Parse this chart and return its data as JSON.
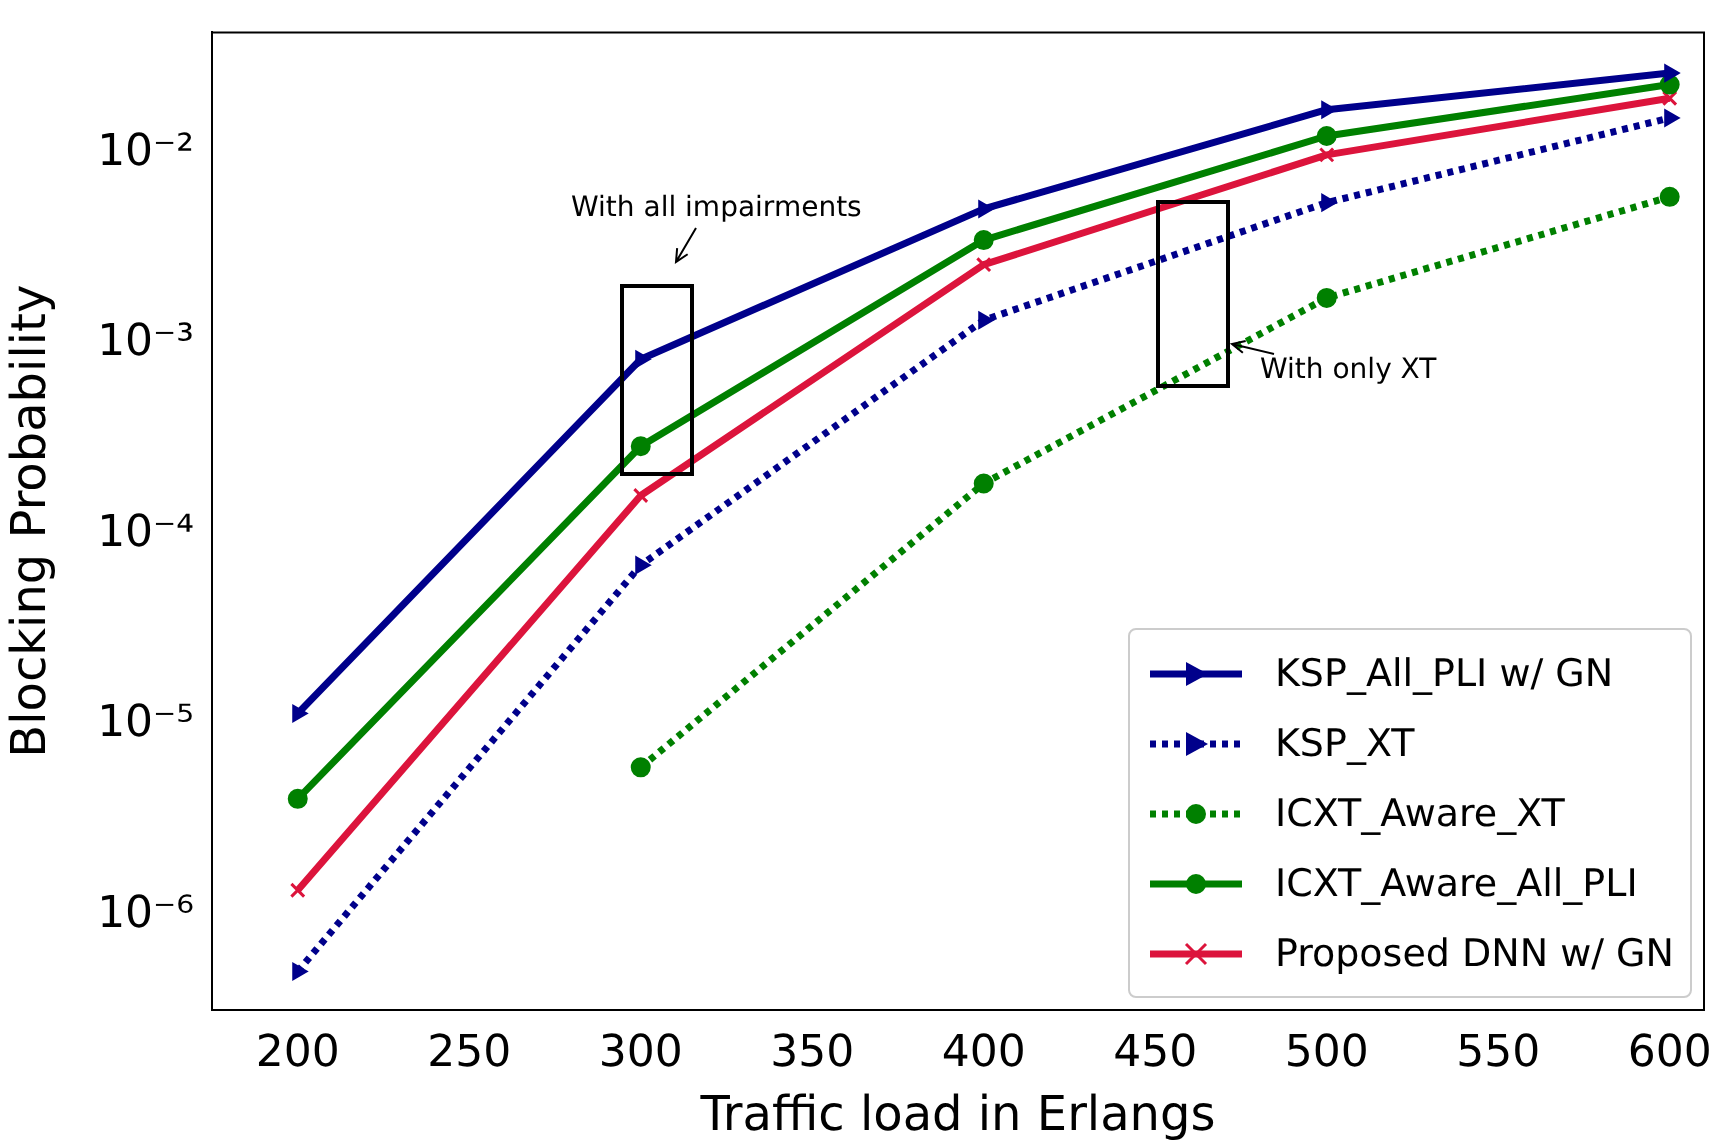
{
  "chart_data": {
    "type": "line",
    "xlabel": "Traffic load in Erlangs",
    "ylabel": "Blocking Probability",
    "log": "y",
    "grid": false,
    "legend": "bottom right",
    "x": [
      200,
      300,
      400,
      500,
      600
    ],
    "xlim": [
      175,
      610
    ],
    "xticks": [
      200,
      250,
      300,
      350,
      400,
      450,
      500,
      550,
      600
    ],
    "ylim": [
      3.2e-07,
      0.043
    ],
    "yticks": [
      {
        "value": 1e-06,
        "label": "10⁻⁶"
      },
      {
        "value": 1e-05,
        "label": "10⁻⁵"
      },
      {
        "value": 0.0001,
        "label": "10⁻⁴"
      },
      {
        "value": 0.001,
        "label": "10⁻³"
      },
      {
        "value": 0.01,
        "label": "10⁻²"
      }
    ],
    "series": [
      {
        "name": "KSP_All_PLI w/ GN",
        "color": "#00008b",
        "marker": "triangle",
        "line_style": "solid",
        "values": [
          1.15e-05,
          0.00083,
          0.0051,
          0.0169,
          0.0263
        ]
      },
      {
        "name": "KSP_XT",
        "color": "#00008b",
        "marker": "triangle",
        "line_style": "dotted",
        "values": [
          5.1e-07,
          6.9e-05,
          0.00133,
          0.0055,
          0.0153
        ]
      },
      {
        "name": "ICXT_Aware_XT",
        "color": "#008000",
        "marker": "circle",
        "line_style": "dotted",
        "values": [
          null,
          6e-06,
          0.000185,
          0.00174,
          0.0059
        ]
      },
      {
        "name": "ICXT_Aware_All_PLI",
        "color": "#008000",
        "marker": "circle",
        "line_style": "solid",
        "values": [
          4.1e-06,
          0.00029,
          0.0035,
          0.0123,
          0.0229
        ]
      },
      {
        "name": "Proposed DNN w/ GN",
        "color": "#dc143c",
        "marker": "cross",
        "line_style": "solid",
        "values": [
          1.36e-06,
          0.00016,
          0.0026,
          0.0098,
          0.0194
        ]
      }
    ],
    "annotations": [
      "With all impairments",
      "With only XT"
    ]
  }
}
